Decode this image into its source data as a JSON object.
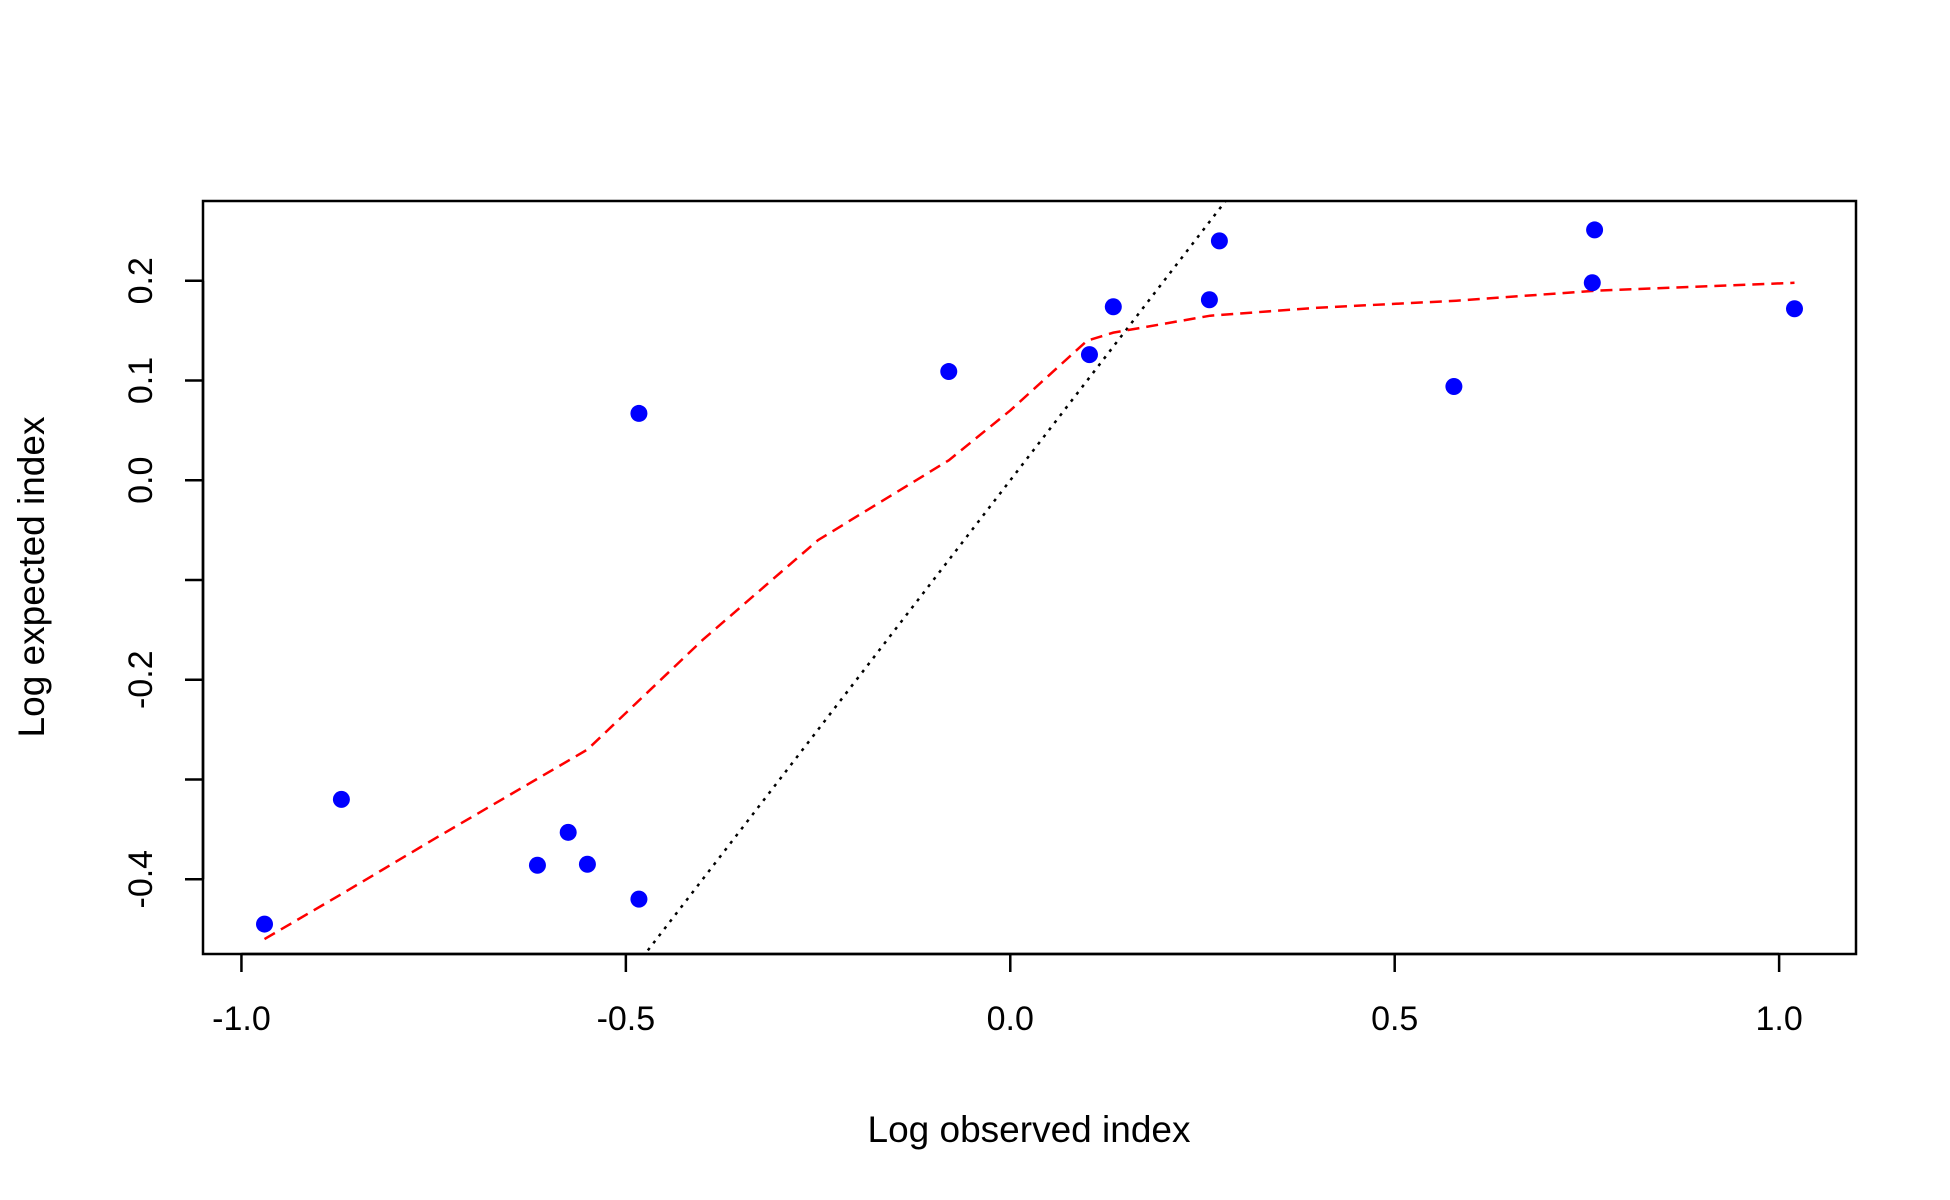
{
  "chart_data": {
    "type": "scatter",
    "title": "",
    "xlabel": "Log observed index",
    "ylabel": "Log expected index",
    "xlim": [
      -1.05,
      1.1
    ],
    "ylim": [
      -0.475,
      0.28
    ],
    "x_ticks": [
      -1.0,
      -0.5,
      0.0,
      0.5,
      1.0
    ],
    "x_tick_labels": [
      "-1.0",
      "-0.5",
      "0.0",
      "0.5",
      "1.0"
    ],
    "y_ticks": [
      -0.4,
      -0.3,
      -0.2,
      -0.1,
      0.0,
      0.1,
      0.2
    ],
    "y_tick_labels": [
      "-0.4",
      "",
      "-0.2",
      "",
      "0.0",
      "0.1",
      "0.2"
    ],
    "grid": false,
    "legend": "none",
    "colors": {
      "points": "#0000FF",
      "smooth_line": "#FF0000",
      "identity_line": "#000000",
      "axes": "#000000"
    },
    "points": {
      "x": [
        -0.97,
        -0.87,
        -0.615,
        -0.575,
        -0.55,
        -0.483,
        -0.483,
        -0.08,
        0.103,
        0.134,
        0.259,
        0.272,
        0.577,
        0.757,
        0.76,
        1.02
      ],
      "y": [
        -0.445,
        -0.32,
        -0.386,
        -0.353,
        -0.385,
        -0.42,
        0.067,
        0.109,
        0.126,
        0.174,
        0.181,
        0.24,
        0.094,
        0.198,
        0.251,
        0.172
      ]
    },
    "smooth_line": {
      "style": "dashed",
      "x": [
        -0.97,
        -0.87,
        -0.75,
        -0.55,
        -0.4,
        -0.25,
        -0.08,
        0.0,
        0.05,
        0.1,
        0.134,
        0.26,
        0.4,
        0.58,
        0.76,
        1.02
      ],
      "y": [
        -0.46,
        -0.415,
        -0.36,
        -0.27,
        -0.16,
        -0.06,
        0.02,
        0.07,
        0.105,
        0.14,
        0.148,
        0.165,
        0.173,
        0.18,
        0.19,
        0.198
      ]
    },
    "identity_line": {
      "style": "dotted",
      "x": [
        -0.5,
        0.3
      ],
      "y": [
        -0.5,
        0.3
      ]
    }
  }
}
